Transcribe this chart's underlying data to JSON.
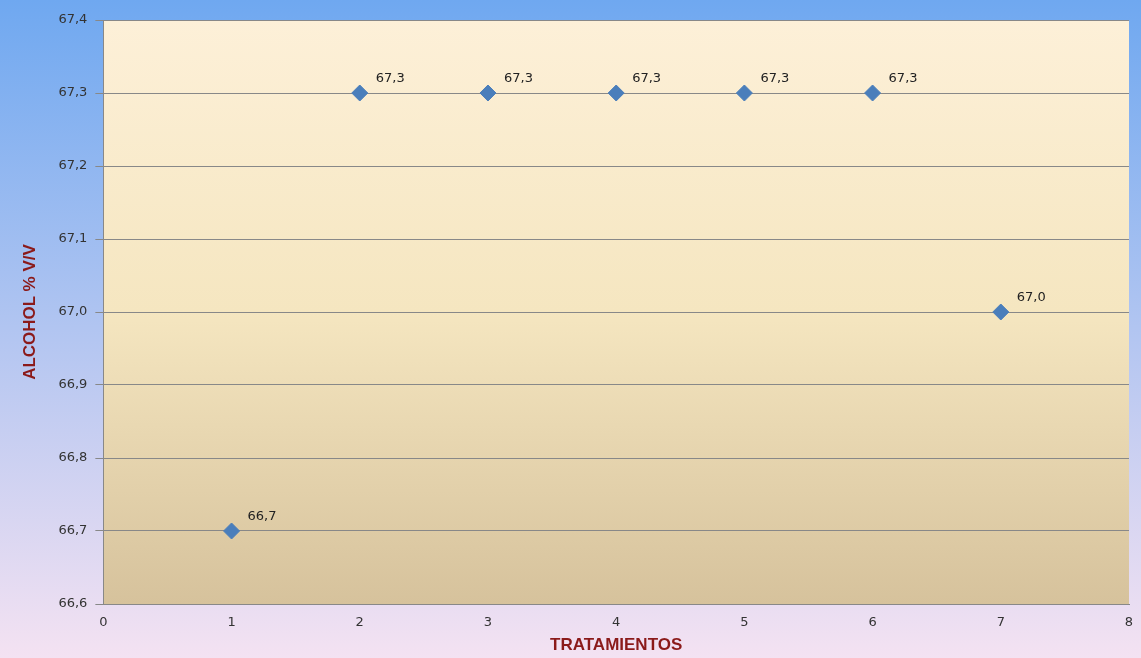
{
  "chart_data": {
    "type": "scatter",
    "xlabel": "TRATAMIENTOS",
    "ylabel": "ALCOHOL % V/V",
    "x": [
      1,
      2,
      3,
      4,
      5,
      6,
      7
    ],
    "values": [
      66.7,
      67.3,
      67.3,
      67.3,
      67.3,
      67.3,
      67.0
    ],
    "value_labels": [
      "66,7",
      "67,3",
      "67,3",
      "67,3",
      "67,3",
      "67,3",
      "67,0"
    ],
    "color": "#4a7ebb",
    "marker": "diamond",
    "grid": "y",
    "xlim": [
      0,
      8
    ],
    "xticks": [
      0,
      1,
      2,
      3,
      4,
      5,
      6,
      7,
      8
    ],
    "ylim": [
      66.6,
      67.4
    ],
    "yticks": [
      {
        "value": 66.6,
        "label": "66,6"
      },
      {
        "value": 66.7,
        "label": "66,7"
      },
      {
        "value": 66.8,
        "label": "66,8"
      },
      {
        "value": 66.9,
        "label": "66,9"
      },
      {
        "value": 67.0,
        "label": "67,0"
      },
      {
        "value": 67.1,
        "label": "67,1"
      },
      {
        "value": 67.2,
        "label": "67,2"
      },
      {
        "value": 67.3,
        "label": "67,3"
      },
      {
        "value": 67.4,
        "label": "67,4"
      }
    ]
  }
}
